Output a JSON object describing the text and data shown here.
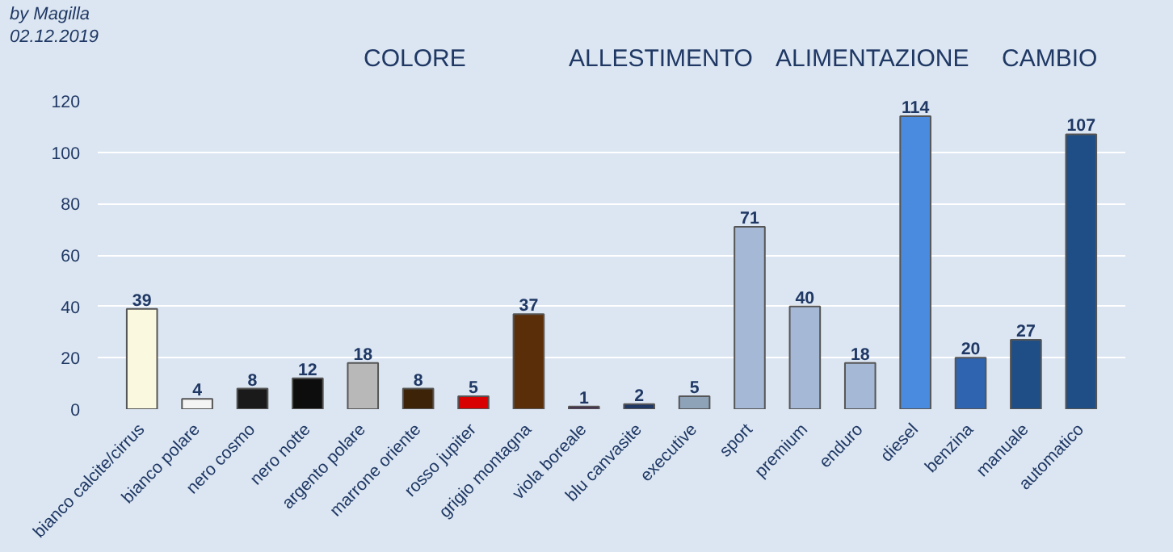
{
  "chart_data": {
    "type": "bar",
    "categories": [
      "bianco calcite/cirrus",
      "bianco polare",
      "nero cosmo",
      "nero notte",
      "argento polare",
      "marrone oriente",
      "rosso jupiter",
      "grigio montagna",
      "viola boreale",
      "blu canvasite",
      "executive",
      "sport",
      "premium",
      "enduro",
      "diesel",
      "benzina",
      "manuale",
      "automatico"
    ],
    "values": [
      39,
      4,
      8,
      12,
      18,
      8,
      5,
      37,
      1,
      2,
      5,
      71,
      40,
      18,
      114,
      20,
      27,
      107
    ],
    "colors": [
      "#fbf8e0",
      "#f4f4f4",
      "#1a1a1a",
      "#0d0d0d",
      "#b8b8b8",
      "#3d2308",
      "#d80000",
      "#5a2e08",
      "#3a1f4a",
      "#1f3864",
      "#8ea2b8",
      "#a5b8d6",
      "#a5b8d6",
      "#a5b8d6",
      "#4a8be0",
      "#2e64b0",
      "#1f4e86",
      "#1f4e86"
    ],
    "ylim": [
      0,
      120
    ],
    "yticks": [
      0,
      20,
      40,
      60,
      80,
      100,
      120
    ],
    "grid": "y",
    "data_labels": true,
    "annotations": [
      "by Magilla",
      "02.12.2019",
      "COLORE",
      "ALLESTIMENTO",
      "ALIMENTAZIONE",
      "CAMBIO"
    ]
  }
}
